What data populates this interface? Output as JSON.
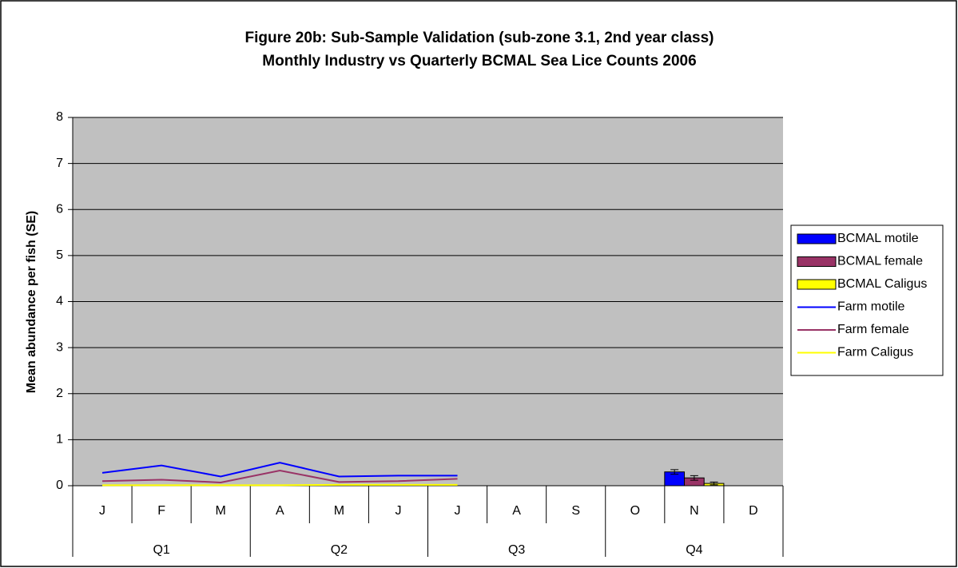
{
  "chart_data": {
    "type": "bar",
    "title": "Figure 20b: Sub-Sample Validation (sub-zone 3.1, 2nd year class)",
    "subtitle": "Monthly Industry vs Quarterly BCMAL Sea Lice Counts 2006",
    "y_label": "Mean abundance per fish (SE)",
    "categories": [
      "J",
      "F",
      "M",
      "A",
      "M",
      "J",
      "J",
      "A",
      "S",
      "O",
      "N",
      "D"
    ],
    "groups": [
      "Q1",
      "Q2",
      "Q3",
      "Q4"
    ],
    "series": [
      {
        "name": "BCMAL motile",
        "color": "#0000ff",
        "kind": "bar",
        "values": [
          null,
          null,
          null,
          null,
          null,
          null,
          null,
          null,
          null,
          null,
          0.3,
          null
        ],
        "errors": [
          null,
          null,
          null,
          null,
          null,
          null,
          null,
          null,
          null,
          null,
          0.05,
          null
        ]
      },
      {
        "name": "BCMAL female",
        "color": "#993366",
        "kind": "bar",
        "values": [
          null,
          null,
          null,
          null,
          null,
          null,
          null,
          null,
          null,
          null,
          0.17,
          null
        ],
        "errors": [
          null,
          null,
          null,
          null,
          null,
          null,
          null,
          null,
          null,
          null,
          0.05,
          null
        ]
      },
      {
        "name": "BCMAL Caligus",
        "color": "#ffff00",
        "kind": "bar",
        "values": [
          null,
          null,
          null,
          null,
          null,
          null,
          null,
          null,
          null,
          null,
          0.05,
          null
        ],
        "errors": [
          null,
          null,
          null,
          null,
          null,
          null,
          null,
          null,
          null,
          null,
          0.03,
          null
        ]
      },
      {
        "name": "Farm motile",
        "color": "#0000ff",
        "kind": "line",
        "values": [
          0.28,
          0.44,
          0.2,
          0.5,
          0.2,
          0.22,
          0.22,
          null,
          null,
          null,
          null,
          null
        ]
      },
      {
        "name": "Farm female",
        "color": "#993366",
        "kind": "line",
        "values": [
          0.1,
          0.13,
          0.07,
          0.33,
          0.08,
          0.1,
          0.15,
          null,
          null,
          null,
          null,
          null
        ]
      },
      {
        "name": "Farm Caligus",
        "color": "#ffff00",
        "kind": "line",
        "values": [
          0.01,
          0.01,
          0.01,
          0.01,
          0.02,
          0.02,
          0.02,
          null,
          null,
          null,
          null,
          null
        ]
      }
    ],
    "ylim": [
      0,
      8
    ],
    "yticks": [
      0,
      1,
      2,
      3,
      4,
      5,
      6,
      7,
      8
    ],
    "grid": true,
    "legend": "right"
  }
}
